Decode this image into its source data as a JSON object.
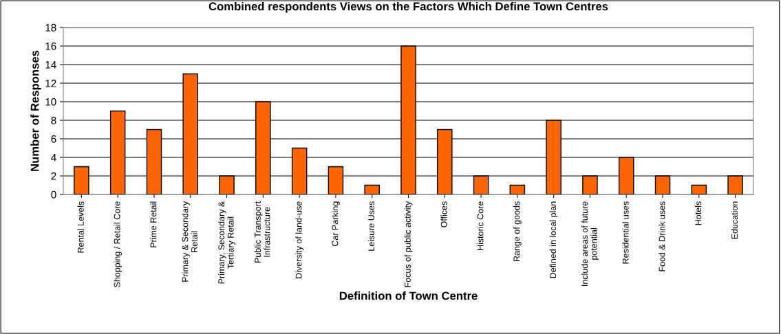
{
  "chart_data": {
    "type": "bar",
    "title": "Combined respondents Views on the Factors Which Define Town Centres",
    "xlabel": "Definition of Town Centre",
    "ylabel": "Number of Responses",
    "categories": [
      "Rental Levels",
      "Shopping / Retail Core",
      "Prime Retail",
      "Primary & Secondary\nRetail",
      "Primary, Secondary &\nTertiary Retail",
      "Public Transport\nInfrastructure",
      "Diversity of land-use",
      "Car Parking",
      "Leisure Uses",
      "Focus of public activity",
      "Offices",
      "Historic Core",
      "Range of goods",
      "Defined in local plan",
      "Include areas of future\npotential",
      "Residential uses",
      "Food & Drink uses",
      "Hotels",
      "Education"
    ],
    "values": [
      3,
      9,
      7,
      13,
      2,
      10,
      5,
      3,
      1,
      16,
      7,
      2,
      1,
      8,
      2,
      4,
      2,
      1,
      2
    ],
    "color": "#ff6600",
    "ylim": [
      0,
      18
    ],
    "yticks": [
      0,
      2,
      4,
      6,
      8,
      10,
      12,
      14,
      16,
      18
    ],
    "grid": "y",
    "legend": false
  }
}
